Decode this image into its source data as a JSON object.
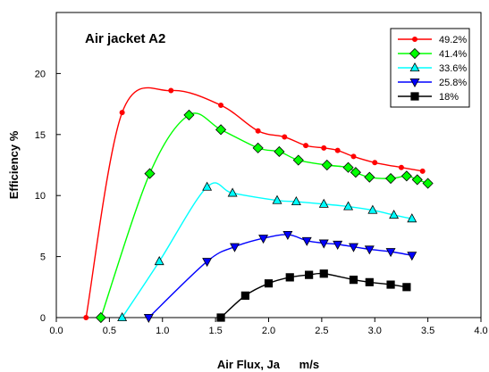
{
  "chart_data": {
    "type": "line",
    "title": "Air jacket A2",
    "xlabel": "Air Flux, Ja      m/s",
    "ylabel": "Efficiency %",
    "xlim": [
      0,
      4
    ],
    "ylim": [
      0,
      25
    ],
    "xticks": [
      "0.0",
      "0.5",
      "1.0",
      "1.5",
      "2.0",
      "2.5",
      "3.0",
      "3.5",
      "4.0"
    ],
    "yticks": [
      "0",
      "5",
      "10",
      "15",
      "20"
    ],
    "legend_position": "top-right",
    "grid": false,
    "series": [
      {
        "name": "49.2%",
        "color": "#ff0000",
        "marker": "circle",
        "x": [
          0.28,
          0.62,
          1.08,
          1.55,
          1.9,
          2.15,
          2.35,
          2.52,
          2.65,
          2.8,
          3.0,
          3.25,
          3.45
        ],
        "y": [
          0.0,
          16.8,
          18.6,
          17.4,
          15.3,
          14.8,
          14.1,
          13.9,
          13.7,
          13.2,
          12.7,
          12.3,
          12.0
        ]
      },
      {
        "name": "41.4%",
        "color": "#00ff00",
        "marker": "diamond",
        "x": [
          0.42,
          0.88,
          1.25,
          1.55,
          1.9,
          2.1,
          2.28,
          2.55,
          2.75,
          2.82,
          2.95,
          3.15,
          3.3,
          3.4,
          3.5
        ],
        "y": [
          0.0,
          11.8,
          16.6,
          15.4,
          13.9,
          13.6,
          12.9,
          12.5,
          12.3,
          11.9,
          11.5,
          11.4,
          11.6,
          11.3,
          11.0
        ]
      },
      {
        "name": "33.6%",
        "color": "#00ffff",
        "marker": "triangle",
        "x": [
          0.62,
          0.97,
          1.42,
          1.66,
          2.08,
          2.26,
          2.52,
          2.75,
          2.98,
          3.18,
          3.35
        ],
        "y": [
          0.0,
          4.6,
          10.7,
          10.2,
          9.6,
          9.5,
          9.3,
          9.1,
          8.8,
          8.4,
          8.1
        ]
      },
      {
        "name": "25.8%",
        "color": "#0000ff",
        "marker": "triangle-down",
        "x": [
          0.87,
          1.42,
          1.68,
          1.95,
          2.18,
          2.36,
          2.52,
          2.65,
          2.8,
          2.95,
          3.15,
          3.35
        ],
        "y": [
          0.0,
          4.6,
          5.8,
          6.5,
          6.8,
          6.3,
          6.1,
          6.0,
          5.8,
          5.6,
          5.4,
          5.1
        ]
      },
      {
        "name": "18%",
        "color": "#000000",
        "marker": "square",
        "x": [
          1.55,
          1.78,
          2.0,
          2.2,
          2.38,
          2.52,
          2.8,
          2.95,
          3.15,
          3.3
        ],
        "y": [
          0.0,
          1.8,
          2.8,
          3.3,
          3.5,
          3.6,
          3.1,
          2.9,
          2.7,
          2.5
        ]
      }
    ]
  }
}
